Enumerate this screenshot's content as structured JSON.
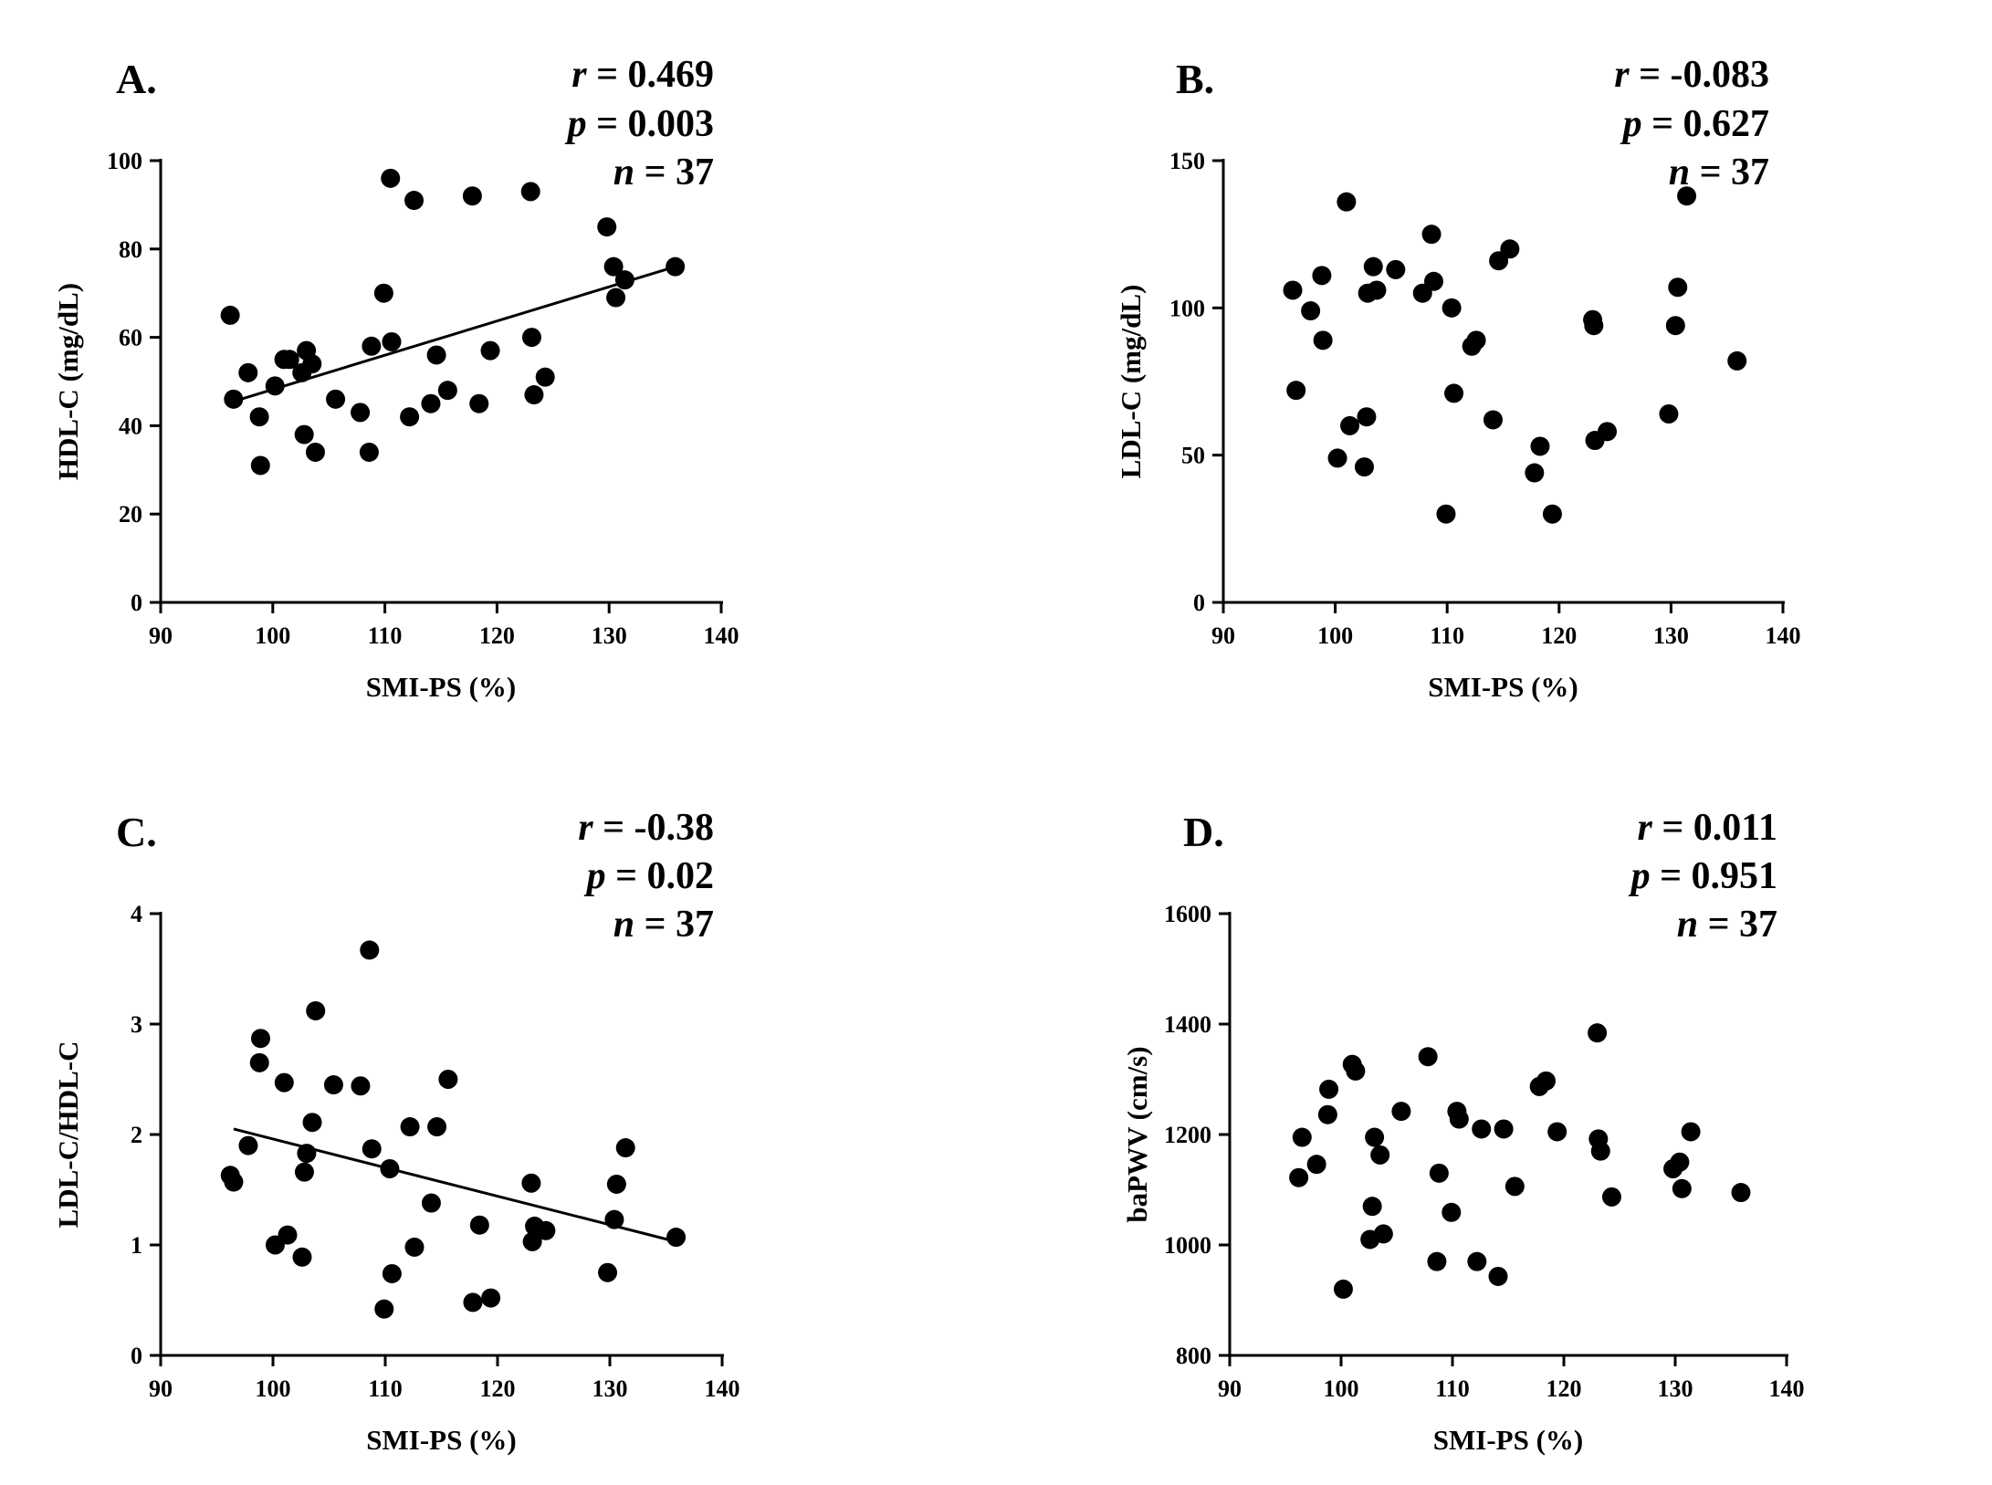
{
  "chart_data": [
    {
      "type": "scatter",
      "panel": "A.",
      "stats": [
        {
          "symbol": "r",
          "text": "= 0.469"
        },
        {
          "symbol": "p",
          "text": "= 0.003"
        },
        {
          "symbol": "n",
          "text": "= 37"
        }
      ],
      "xlabel": "SMI-PS (%)",
      "ylabel": "HDL-C (mg/dL)",
      "xlim": [
        90,
        140
      ],
      "ylim": [
        0,
        100
      ],
      "xticks": [
        90,
        100,
        110,
        120,
        130,
        140
      ],
      "yticks": [
        0,
        20,
        40,
        60,
        80,
        100
      ],
      "points": [
        [
          96.2,
          65
        ],
        [
          96.5,
          46
        ],
        [
          97.8,
          52
        ],
        [
          98.8,
          42
        ],
        [
          98.9,
          31
        ],
        [
          100.2,
          49
        ],
        [
          101.0,
          55
        ],
        [
          101.5,
          55
        ],
        [
          102.6,
          52
        ],
        [
          102.8,
          38
        ],
        [
          103.0,
          57
        ],
        [
          103.5,
          54
        ],
        [
          103.8,
          34
        ],
        [
          105.6,
          46
        ],
        [
          107.8,
          43
        ],
        [
          108.6,
          34
        ],
        [
          108.8,
          58
        ],
        [
          109.9,
          70
        ],
        [
          110.6,
          59
        ],
        [
          110.5,
          96
        ],
        [
          112.2,
          42
        ],
        [
          112.6,
          91
        ],
        [
          114.1,
          45
        ],
        [
          114.6,
          56
        ],
        [
          115.6,
          48
        ],
        [
          117.8,
          92
        ],
        [
          118.4,
          45
        ],
        [
          119.4,
          57
        ],
        [
          123.0,
          93
        ],
        [
          123.1,
          60
        ],
        [
          123.3,
          47
        ],
        [
          124.3,
          51
        ],
        [
          129.8,
          85
        ],
        [
          130.4,
          76
        ],
        [
          130.6,
          69
        ],
        [
          131.4,
          73
        ],
        [
          135.9,
          76
        ]
      ],
      "fit_line": {
        "x": [
          96.5,
          135.9
        ],
        "y": [
          45.5,
          76
        ]
      },
      "grid": false
    },
    {
      "type": "scatter",
      "panel": "B.",
      "stats": [
        {
          "symbol": "r",
          "text": "= -0.083"
        },
        {
          "symbol": "p",
          "text": "= 0.627"
        },
        {
          "symbol": "n",
          "text": "= 37"
        }
      ],
      "xlabel": "SMI-PS (%)",
      "ylabel": "LDL-C (mg/dL)",
      "xlim": [
        90,
        140
      ],
      "ylim": [
        0,
        150
      ],
      "xticks": [
        90,
        100,
        110,
        120,
        130,
        140
      ],
      "yticks": [
        0,
        50,
        100,
        150
      ],
      "points": [
        [
          96.2,
          106
        ],
        [
          96.5,
          72
        ],
        [
          97.8,
          99
        ],
        [
          98.8,
          111
        ],
        [
          98.9,
          89
        ],
        [
          100.2,
          49
        ],
        [
          101.0,
          136
        ],
        [
          101.3,
          60
        ],
        [
          102.6,
          46
        ],
        [
          102.8,
          63
        ],
        [
          102.9,
          105
        ],
        [
          103.4,
          114
        ],
        [
          103.7,
          106
        ],
        [
          105.4,
          113
        ],
        [
          107.8,
          105
        ],
        [
          108.6,
          125
        ],
        [
          108.8,
          109
        ],
        [
          109.9,
          30
        ],
        [
          110.4,
          100
        ],
        [
          110.6,
          71
        ],
        [
          112.2,
          87
        ],
        [
          112.6,
          89
        ],
        [
          114.1,
          62
        ],
        [
          114.6,
          116
        ],
        [
          115.6,
          120
        ],
        [
          117.8,
          44
        ],
        [
          118.3,
          53
        ],
        [
          119.4,
          30
        ],
        [
          123.0,
          96
        ],
        [
          123.1,
          94
        ],
        [
          123.2,
          55
        ],
        [
          124.3,
          58
        ],
        [
          129.8,
          64
        ],
        [
          130.4,
          94
        ],
        [
          130.6,
          107
        ],
        [
          131.4,
          138
        ],
        [
          135.9,
          82
        ]
      ],
      "grid": false
    },
    {
      "type": "scatter",
      "panel": "C.",
      "stats": [
        {
          "symbol": "r",
          "text": "= -0.38"
        },
        {
          "symbol": "p",
          "text": "= 0.02"
        },
        {
          "symbol": "n",
          "text": "= 37"
        }
      ],
      "xlabel": "SMI-PS (%)",
      "ylabel": "LDL-C/HDL-C",
      "xlim": [
        90,
        140
      ],
      "ylim": [
        0,
        4
      ],
      "xticks": [
        90,
        100,
        110,
        120,
        130,
        140
      ],
      "yticks": [
        0,
        1,
        2,
        3,
        4
      ],
      "points": [
        [
          96.2,
          1.63
        ],
        [
          96.5,
          1.57
        ],
        [
          97.8,
          1.9
        ],
        [
          98.8,
          2.65
        ],
        [
          98.9,
          2.87
        ],
        [
          100.2,
          1.0
        ],
        [
          101.0,
          2.47
        ],
        [
          101.3,
          1.09
        ],
        [
          102.6,
          0.89
        ],
        [
          102.8,
          1.66
        ],
        [
          103.0,
          1.83
        ],
        [
          103.5,
          2.11
        ],
        [
          103.8,
          3.12
        ],
        [
          105.4,
          2.45
        ],
        [
          107.8,
          2.44
        ],
        [
          108.6,
          3.67
        ],
        [
          108.8,
          1.87
        ],
        [
          109.9,
          0.42
        ],
        [
          110.4,
          1.69
        ],
        [
          110.6,
          0.74
        ],
        [
          112.2,
          2.07
        ],
        [
          112.6,
          0.98
        ],
        [
          114.1,
          1.38
        ],
        [
          114.6,
          2.07
        ],
        [
          115.6,
          2.5
        ],
        [
          117.8,
          0.48
        ],
        [
          118.4,
          1.18
        ],
        [
          119.4,
          0.52
        ],
        [
          123.0,
          1.56
        ],
        [
          123.1,
          1.03
        ],
        [
          123.3,
          1.17
        ],
        [
          124.3,
          1.13
        ],
        [
          129.8,
          0.75
        ],
        [
          130.4,
          1.23
        ],
        [
          130.6,
          1.55
        ],
        [
          131.4,
          1.88
        ],
        [
          135.9,
          1.07
        ]
      ],
      "fit_line": {
        "x": [
          96.5,
          135.9
        ],
        "y": [
          2.05,
          1.03
        ]
      },
      "grid": false
    },
    {
      "type": "scatter",
      "panel": "D.",
      "stats": [
        {
          "symbol": "r",
          "text": "= 0.011"
        },
        {
          "symbol": "p",
          "text": "= 0.951"
        },
        {
          "symbol": "n",
          "text": "= 37"
        }
      ],
      "xlabel": "SMI-PS (%)",
      "ylabel": "baPWV (cm/s)",
      "xlim": [
        90,
        140
      ],
      "ylim": [
        800,
        1600
      ],
      "xticks": [
        90,
        100,
        110,
        120,
        130,
        140
      ],
      "yticks": [
        800,
        1000,
        1200,
        1400,
        1600
      ],
      "points": [
        [
          96.2,
          1122
        ],
        [
          96.5,
          1195
        ],
        [
          97.8,
          1146
        ],
        [
          98.8,
          1236
        ],
        [
          98.9,
          1282
        ],
        [
          100.2,
          920
        ],
        [
          101.0,
          1327
        ],
        [
          101.3,
          1315
        ],
        [
          102.6,
          1010
        ],
        [
          102.8,
          1070
        ],
        [
          103.0,
          1195
        ],
        [
          103.5,
          1163
        ],
        [
          103.8,
          1020
        ],
        [
          105.4,
          1242
        ],
        [
          107.8,
          1341
        ],
        [
          108.6,
          970
        ],
        [
          108.8,
          1130
        ],
        [
          109.9,
          1059
        ],
        [
          110.4,
          1242
        ],
        [
          110.6,
          1228
        ],
        [
          112.2,
          970
        ],
        [
          112.6,
          1210
        ],
        [
          114.1,
          943
        ],
        [
          114.6,
          1210
        ],
        [
          115.6,
          1106
        ],
        [
          117.8,
          1287
        ],
        [
          118.4,
          1297
        ],
        [
          119.4,
          1205
        ],
        [
          123.0,
          1384
        ],
        [
          123.1,
          1192
        ],
        [
          123.3,
          1170
        ],
        [
          124.3,
          1087
        ],
        [
          129.8,
          1138
        ],
        [
          130.4,
          1150
        ],
        [
          130.6,
          1102
        ],
        [
          131.4,
          1205
        ],
        [
          135.9,
          1095
        ]
      ],
      "grid": false
    }
  ]
}
